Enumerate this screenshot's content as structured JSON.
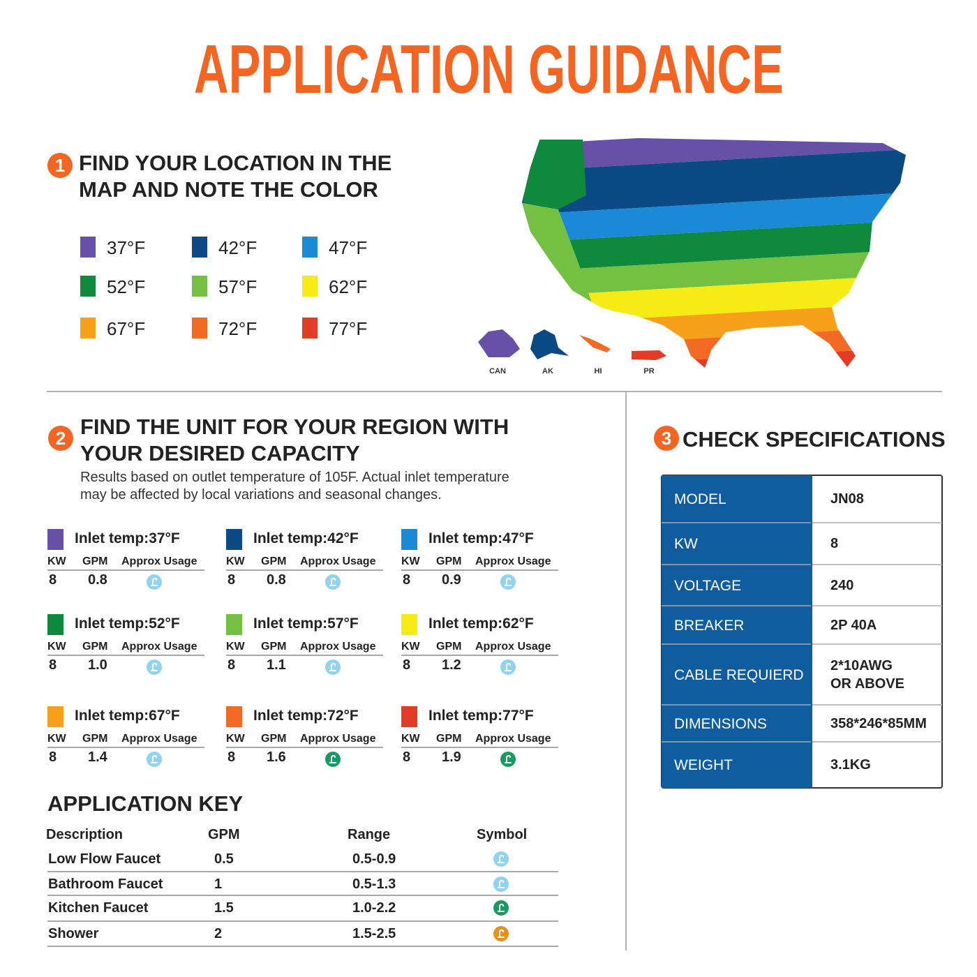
{
  "title": "APPLICATION GUIDANCE",
  "step1": {
    "number": "1",
    "heading": [
      "FIND YOUR LOCATION IN THE",
      "MAP AND NOTE THE COLOR"
    ],
    "legend": [
      {
        "color": "#6650a8",
        "label": "37°F"
      },
      {
        "color": "#0c4a85",
        "label": "42°F"
      },
      {
        "color": "#1b8ad6",
        "label": "47°F"
      },
      {
        "color": "#0f8a3c",
        "label": "52°F"
      },
      {
        "color": "#74c043",
        "label": "57°F"
      },
      {
        "color": "#f6eb14",
        "label": "62°F"
      },
      {
        "color": "#f7a11a",
        "label": "67°F"
      },
      {
        "color": "#f26a24",
        "label": "72°F"
      },
      {
        "color": "#e23b26",
        "label": "77°F"
      }
    ]
  },
  "map": {
    "labels": [
      "CAN",
      "AK",
      "HI",
      "PR"
    ]
  },
  "step2": {
    "number": "2",
    "heading": [
      "FIND THE UNIT FOR YOUR REGION WITH",
      "YOUR DESIRED CAPACITY"
    ],
    "note": [
      "Results based on outlet temperature of 105F. Actual inlet temperature",
      "may be affected by local variations and seasonal changes."
    ],
    "units": [
      {
        "color": "#6650a8",
        "label": "Inlet temp:37°F",
        "columns": [
          "KW",
          "GPM",
          "Approx Usage"
        ],
        "kw": "8",
        "gpm": "0.8",
        "symbol_color": "#8fd3f0"
      },
      {
        "color": "#0c4a85",
        "label": "Inlet temp:42°F",
        "columns": [
          "KW",
          "GPM",
          "Approx Usage"
        ],
        "kw": "8",
        "gpm": "0.8",
        "symbol_color": "#8fd3f0"
      },
      {
        "color": "#1b8ad6",
        "label": "Inlet temp:47°F",
        "columns": [
          "KW",
          "GPM",
          "Approx Usage"
        ],
        "kw": "8",
        "gpm": "0.9",
        "symbol_color": "#8fd3f0"
      },
      {
        "color": "#0f8a3c",
        "label": "Inlet temp:52°F",
        "columns": [
          "KW",
          "GPM",
          "Approx Usage"
        ],
        "kw": "8",
        "gpm": "1.0",
        "symbol_color": "#8fd3f0"
      },
      {
        "color": "#74c043",
        "label": "Inlet temp:57°F",
        "columns": [
          "KW",
          "GPM",
          "Approx Usage"
        ],
        "kw": "8",
        "gpm": "1.1",
        "symbol_color": "#8fd3f0"
      },
      {
        "color": "#f6eb14",
        "label": "Inlet temp:62°F",
        "columns": [
          "KW",
          "GPM",
          "Approx Usage"
        ],
        "kw": "8",
        "gpm": "1.2",
        "symbol_color": "#8fd3f0"
      },
      {
        "color": "#f7a11a",
        "label": "Inlet temp:67°F",
        "columns": [
          "KW",
          "GPM",
          "Approx Usage"
        ],
        "kw": "8",
        "gpm": "1.4",
        "symbol_color": "#8fd3f0"
      },
      {
        "color": "#f26a24",
        "label": "Inlet temp:72°F",
        "columns": [
          "KW",
          "GPM",
          "Approx Usage"
        ],
        "kw": "8",
        "gpm": "1.6",
        "symbol_color": "#1a9a63"
      },
      {
        "color": "#e23b26",
        "label": "Inlet temp:77°F",
        "columns": [
          "KW",
          "GPM",
          "Approx Usage"
        ],
        "kw": "8",
        "gpm": "1.9",
        "symbol_color": "#1a9a63"
      }
    ]
  },
  "key": {
    "title": "APPLICATION KEY",
    "headers": [
      "Description",
      "GPM",
      "Range",
      "Symbol"
    ],
    "rows": [
      {
        "description": "Low Flow Faucet",
        "gpm": "0.5",
        "range": "0.5-0.9",
        "symbol_color": "#8fd3f0"
      },
      {
        "description": "Bathroom Faucet",
        "gpm": "1",
        "range": "0.5-1.3",
        "symbol_color": "#8fd3f0"
      },
      {
        "description": "Kitchen Faucet",
        "gpm": "1.5",
        "range": "1.0-2.2",
        "symbol_color": "#1a9a63"
      },
      {
        "description": "Shower",
        "gpm": "2",
        "range": "1.5-2.5",
        "symbol_color": "#e8911a"
      }
    ]
  },
  "step3": {
    "number": "3",
    "heading": "CHECK SPECIFICATIONS",
    "specs": [
      {
        "label": "MODEL",
        "value": [
          "JN08"
        ]
      },
      {
        "label": "KW",
        "value": [
          "8"
        ]
      },
      {
        "label": "VOLTAGE",
        "value": [
          "240"
        ]
      },
      {
        "label": "BREAKER",
        "value": [
          "2P 40A"
        ]
      },
      {
        "label": "CABLE REQUIERD",
        "value": [
          "2*10AWG",
          "OR ABOVE"
        ]
      },
      {
        "label": "DIMENSIONS",
        "value": [
          "358*246*85MM"
        ]
      },
      {
        "label": "WEIGHT",
        "value": [
          "3.1KG"
        ]
      }
    ]
  }
}
